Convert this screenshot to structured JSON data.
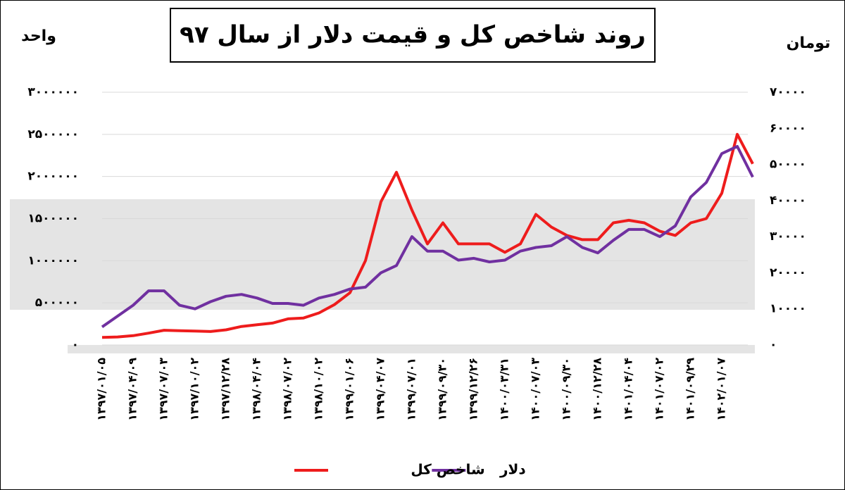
{
  "chart_data": {
    "type": "line",
    "title": "روند شاخص کل و قیمت دلار از سال ۹۷",
    "y_label": "واحد",
    "y2_label": "تومان",
    "categories": [
      "۱۳۹۷/۰۱/۰۵",
      null,
      "۱۳۹۷/۰۴/۰۹",
      null,
      "۱۳۹۷/۰۷/۰۳",
      null,
      "۱۳۹۷/۱۰/۰۲",
      null,
      "۱۳۹۷/۱۲/۲۸",
      null,
      "۱۳۹۸/۰۴/۰۴",
      null,
      "۱۳۹۸/۰۷/۰۲",
      null,
      "۱۳۹۸/۱۰/۰۲",
      null,
      "۱۳۹۹/۰۱/۰۶",
      null,
      "۱۳۹۹/۰۴/۰۷",
      null,
      "۱۳۹۹/۰۷/۰۱",
      null,
      "۱۳۹۹/۰۹/۳۰",
      null,
      "۱۳۹۹/۱۲/۲۶",
      null,
      "۱۴۰۰/۰۳/۳۱",
      null,
      "۱۴۰۰/۰۷/۰۳",
      null,
      "۱۴۰۰/۰۹/۳۰",
      null,
      "۱۴۰۰/۱۲/۲۸",
      null,
      "۱۴۰۱/۰۴/۰۴",
      null,
      "۱۴۰۱/۰۷/۰۲",
      null,
      "۱۴۰۱/۰۹/۲۹",
      null,
      "۱۴۰۲/۰۱/۰۷",
      null,
      null
    ],
    "series": [
      {
        "name": "شاخص کل",
        "color": "#ee1c1c",
        "values": [
          90000,
          95000,
          110000,
          140000,
          175000,
          170000,
          165000,
          160000,
          180000,
          220000,
          240000,
          260000,
          310000,
          320000,
          380000,
          480000,
          620000,
          1000000,
          1700000,
          2050000,
          1600000,
          1200000,
          1450000,
          1200000,
          1200000,
          1200000,
          1100000,
          1200000,
          1550000,
          1400000,
          1300000,
          1250000,
          1250000,
          1450000,
          1480000,
          1450000,
          1350000,
          1300000,
          1450000,
          1500000,
          1800000,
          2500000,
          2150000
        ]
      },
      {
        "name": "دلار",
        "color": "#7030a0",
        "axis": "y2",
        "values": [
          5000,
          8000,
          11000,
          15000,
          15000,
          11000,
          10000,
          12000,
          13500,
          14000,
          13000,
          11500,
          11500,
          11000,
          13000,
          14000,
          15500,
          16000,
          20000,
          22000,
          30000,
          26000,
          26000,
          23500,
          24000,
          23000,
          23500,
          26000,
          27000,
          27500,
          30000,
          27000,
          25500,
          29000,
          32000,
          32000,
          30000,
          33000,
          41000,
          45000,
          53000,
          55000,
          46500
        ]
      }
    ],
    "ylim": [
      0,
      3000000
    ],
    "yticks": [
      {
        "value": 0,
        "label": "۰"
      },
      {
        "value": 500000,
        "label": "۵۰۰۰۰۰"
      },
      {
        "value": 1000000,
        "label": "۱۰۰۰۰۰۰"
      },
      {
        "value": 1500000,
        "label": "۱۵۰۰۰۰۰"
      },
      {
        "value": 2000000,
        "label": "۲۰۰۰۰۰۰"
      },
      {
        "value": 2500000,
        "label": "۲۵۰۰۰۰۰"
      },
      {
        "value": 3000000,
        "label": "۳۰۰۰۰۰۰"
      }
    ],
    "y2lim": [
      0,
      70000
    ],
    "y2ticks": [
      {
        "value": 0,
        "label": "۰"
      },
      {
        "value": 10000,
        "label": "۱۰۰۰۰"
      },
      {
        "value": 20000,
        "label": "۲۰۰۰۰"
      },
      {
        "value": 30000,
        "label": "۳۰۰۰۰"
      },
      {
        "value": 40000,
        "label": "۴۰۰۰۰"
      },
      {
        "value": 50000,
        "label": "۵۰۰۰۰"
      },
      {
        "value": 60000,
        "label": "۶۰۰۰۰"
      },
      {
        "value": 70000,
        "label": "۷۰۰۰۰"
      }
    ],
    "grid": true
  }
}
